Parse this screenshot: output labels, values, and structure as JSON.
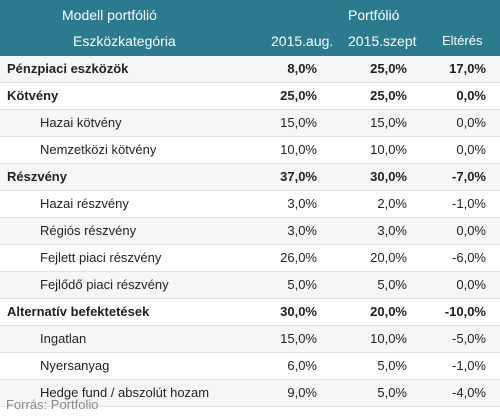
{
  "header": {
    "model_label": "Modell portfólió",
    "portfolio_label": "Portfólió",
    "category_label": "Eszközkategória",
    "col_aug": "2015.aug.",
    "col_szept": "2015.szept",
    "col_diff": "Eltérés"
  },
  "rows": [
    {
      "label": "Pénzpiaci eszközök",
      "aug": "8,0%",
      "szept": "25,0%",
      "diff": "17,0%"
    },
    {
      "label": "Kötvény",
      "aug": "25,0%",
      "szept": "25,0%",
      "diff": "0,0%"
    },
    {
      "label": "Hazai kötvény",
      "aug": "15,0%",
      "szept": "15,0%",
      "diff": "0,0%"
    },
    {
      "label": "Nemzetközi kötvény",
      "aug": "10,0%",
      "szept": "10,0%",
      "diff": "0,0%"
    },
    {
      "label": "Részvény",
      "aug": "37,0%",
      "szept": "30,0%",
      "diff": "-7,0%"
    },
    {
      "label": "Hazai részvény",
      "aug": "3,0%",
      "szept": "2,0%",
      "diff": "-1,0%"
    },
    {
      "label": "Régiós részvény",
      "aug": "3,0%",
      "szept": "3,0%",
      "diff": "0,0%"
    },
    {
      "label": "Fejlett piaci részvény",
      "aug": "26,0%",
      "szept": "20,0%",
      "diff": "-6,0%"
    },
    {
      "label": "Fejlődő piaci részvény",
      "aug": "5,0%",
      "szept": "5,0%",
      "diff": "0,0%"
    },
    {
      "label": "Alternatív befektetések",
      "aug": "30,0%",
      "szept": "20,0%",
      "diff": "-10,0%"
    },
    {
      "label": "Ingatlan",
      "aug": "15,0%",
      "szept": "10,0%",
      "diff": "-5,0%"
    },
    {
      "label": "Nyersanyag",
      "aug": "6,0%",
      "szept": "5,0%",
      "diff": "-1,0%"
    },
    {
      "label": "Hedge fund / abszolút hozam",
      "aug": "9,0%",
      "szept": "5,0%",
      "diff": "-4,0%"
    }
  ],
  "source": "Forrás: Portfolio",
  "colors": {
    "header_bg": "#2b7a8e",
    "header_text": "#ffffff",
    "source_text": "#8a8a8a"
  }
}
